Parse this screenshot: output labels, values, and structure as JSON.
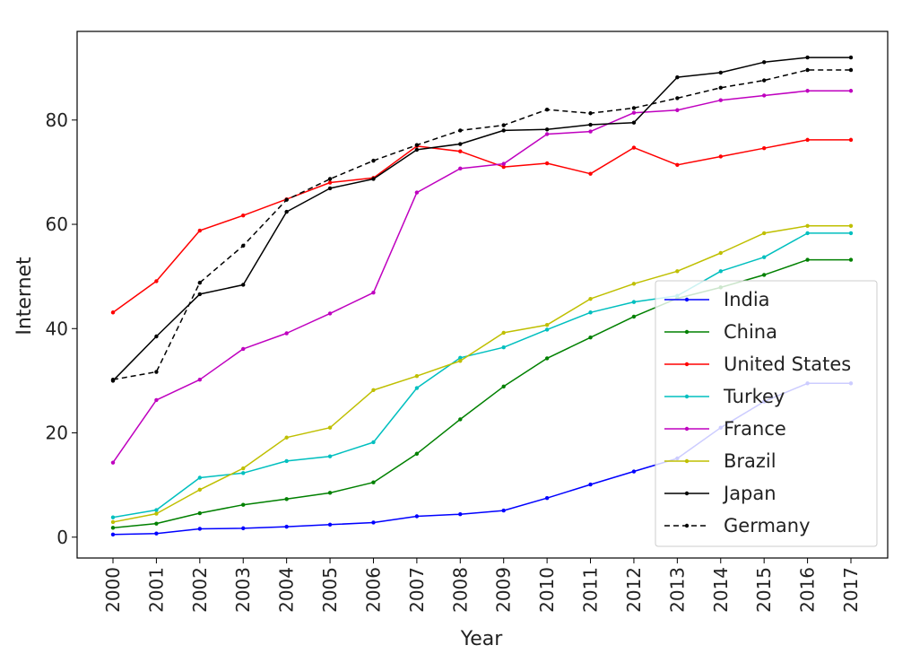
{
  "chart_data": {
    "type": "line",
    "xlabel": "Year",
    "ylabel": "Internet",
    "x": [
      "2000",
      "2001",
      "2002",
      "2003",
      "2004",
      "2005",
      "2006",
      "2007",
      "2008",
      "2009",
      "2010",
      "2011",
      "2012",
      "2013",
      "2014",
      "2015",
      "2016",
      "2017"
    ],
    "ylim": [
      -4,
      97
    ],
    "yticks": [
      0,
      20,
      40,
      60,
      80
    ],
    "grid": false,
    "legend_position": "lower right",
    "series": [
      {
        "name": "India",
        "color": "#0000ff",
        "dashed": false,
        "values": [
          0.5,
          0.7,
          1.6,
          1.7,
          2.0,
          2.4,
          2.8,
          4.0,
          4.4,
          5.1,
          7.5,
          10.1,
          12.6,
          15.1,
          21.0,
          26.0,
          29.5,
          29.5
        ]
      },
      {
        "name": "China",
        "color": "#008000",
        "dashed": false,
        "values": [
          1.8,
          2.6,
          4.6,
          6.2,
          7.3,
          8.5,
          10.5,
          16.0,
          22.6,
          28.9,
          34.3,
          38.3,
          42.3,
          45.8,
          47.9,
          50.3,
          53.2,
          53.2
        ]
      },
      {
        "name": "United States",
        "color": "#ff0000",
        "dashed": false,
        "values": [
          43.1,
          49.1,
          58.8,
          61.7,
          64.8,
          68.0,
          68.9,
          75.0,
          74.0,
          71.0,
          71.7,
          69.7,
          74.7,
          71.4,
          73.0,
          74.6,
          76.2,
          76.2
        ]
      },
      {
        "name": "Turkey",
        "color": "#00bfbf",
        "dashed": false,
        "values": [
          3.8,
          5.2,
          11.4,
          12.3,
          14.6,
          15.5,
          18.2,
          28.6,
          34.4,
          36.4,
          39.8,
          43.1,
          45.1,
          46.3,
          51.0,
          53.7,
          58.3,
          58.3
        ]
      },
      {
        "name": "France",
        "color": "#bf00bf",
        "dashed": false,
        "values": [
          14.3,
          26.3,
          30.2,
          36.1,
          39.1,
          42.9,
          46.9,
          66.1,
          70.7,
          71.6,
          77.3,
          77.8,
          81.4,
          81.9,
          83.8,
          84.7,
          85.6,
          85.6
        ]
      },
      {
        "name": "Brazil",
        "color": "#bfbf00",
        "dashed": false,
        "values": [
          2.9,
          4.5,
          9.1,
          13.2,
          19.1,
          21.0,
          28.2,
          30.9,
          33.8,
          39.2,
          40.7,
          45.7,
          48.6,
          51.0,
          54.5,
          58.3,
          59.7,
          59.7
        ]
      },
      {
        "name": "Japan",
        "color": "#000000",
        "dashed": false,
        "values": [
          30.0,
          38.5,
          46.6,
          48.4,
          62.4,
          66.9,
          68.7,
          74.3,
          75.4,
          78.0,
          78.2,
          79.1,
          79.5,
          88.2,
          89.1,
          91.1,
          92.0,
          92.0
        ]
      },
      {
        "name": "Germany",
        "color": "#000000",
        "dashed": true,
        "values": [
          30.2,
          31.7,
          48.8,
          55.9,
          64.7,
          68.7,
          72.2,
          75.2,
          78.0,
          79.0,
          82.0,
          81.3,
          82.3,
          84.2,
          86.2,
          87.6,
          89.6,
          89.6
        ]
      }
    ]
  }
}
